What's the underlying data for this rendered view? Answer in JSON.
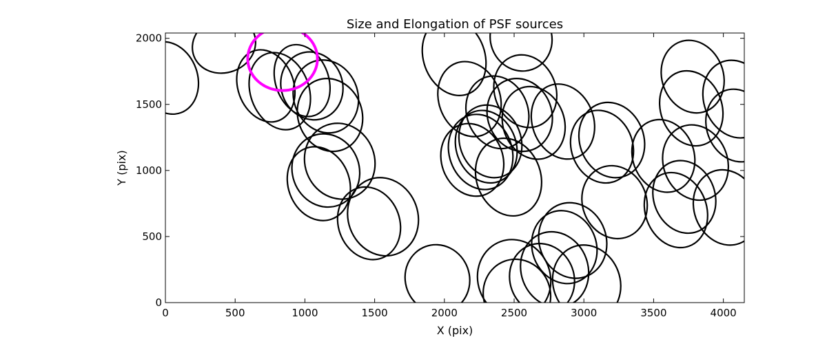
{
  "chart_data": {
    "type": "scatter",
    "title": "Size and Elongation of PSF sources",
    "xlabel": "X (pix)",
    "ylabel": "Y (pix)",
    "xlim": [
      0,
      4150
    ],
    "ylim": [
      0,
      2040
    ],
    "xticks": [
      0,
      500,
      1000,
      1500,
      2000,
      2500,
      3000,
      3500,
      4000
    ],
    "yticks": [
      0,
      500,
      1000,
      1500,
      2000
    ],
    "grid": false,
    "colors": {
      "source": "#000000",
      "highlight": "#ff00ff",
      "axes": "#000000",
      "background": "#ffffff"
    },
    "highlight": {
      "x": 840,
      "y": 1845,
      "width": 500,
      "height": 480,
      "angle": 0
    },
    "ellipses": [
      {
        "x": 20,
        "y": 1700,
        "width": 420,
        "height": 560,
        "angle": -20
      },
      {
        "x": 420,
        "y": 1950,
        "width": 460,
        "height": 420,
        "angle": -20
      },
      {
        "x": 720,
        "y": 1640,
        "width": 400,
        "height": 560,
        "angle": -20
      },
      {
        "x": 820,
        "y": 1600,
        "width": 420,
        "height": 600,
        "angle": -20
      },
      {
        "x": 980,
        "y": 1680,
        "width": 380,
        "height": 560,
        "angle": -20
      },
      {
        "x": 1050,
        "y": 1640,
        "width": 440,
        "height": 520,
        "angle": -20
      },
      {
        "x": 1150,
        "y": 1560,
        "width": 460,
        "height": 560,
        "angle": -20
      },
      {
        "x": 1180,
        "y": 1420,
        "width": 460,
        "height": 560,
        "angle": -20
      },
      {
        "x": 1250,
        "y": 1070,
        "width": 500,
        "height": 580,
        "angle": -20
      },
      {
        "x": 1150,
        "y": 1000,
        "width": 480,
        "height": 560,
        "angle": -20
      },
      {
        "x": 1100,
        "y": 900,
        "width": 440,
        "height": 570,
        "angle": -20
      },
      {
        "x": 1460,
        "y": 600,
        "width": 440,
        "height": 560,
        "angle": -20
      },
      {
        "x": 1560,
        "y": 650,
        "width": 500,
        "height": 600,
        "angle": -20
      },
      {
        "x": 1950,
        "y": 180,
        "width": 460,
        "height": 520,
        "angle": -20
      },
      {
        "x": 2070,
        "y": 1860,
        "width": 440,
        "height": 600,
        "angle": -20
      },
      {
        "x": 2550,
        "y": 2000,
        "width": 440,
        "height": 500,
        "angle": -20
      },
      {
        "x": 2180,
        "y": 1540,
        "width": 440,
        "height": 580,
        "angle": -20
      },
      {
        "x": 2380,
        "y": 1440,
        "width": 440,
        "height": 560,
        "angle": -20
      },
      {
        "x": 2580,
        "y": 1600,
        "width": 440,
        "height": 560,
        "angle": -20
      },
      {
        "x": 2540,
        "y": 1420,
        "width": 460,
        "height": 560,
        "angle": -20
      },
      {
        "x": 2640,
        "y": 1360,
        "width": 440,
        "height": 560,
        "angle": -20
      },
      {
        "x": 2850,
        "y": 1370,
        "width": 440,
        "height": 580,
        "angle": -20
      },
      {
        "x": 2200,
        "y": 1080,
        "width": 440,
        "height": 560,
        "angle": -20
      },
      {
        "x": 2260,
        "y": 1140,
        "width": 450,
        "height": 580,
        "angle": -20
      },
      {
        "x": 2300,
        "y": 1180,
        "width": 430,
        "height": 560,
        "angle": -20
      },
      {
        "x": 2330,
        "y": 1220,
        "width": 440,
        "height": 560,
        "angle": -20
      },
      {
        "x": 2460,
        "y": 950,
        "width": 460,
        "height": 600,
        "angle": -20
      },
      {
        "x": 2500,
        "y": 180,
        "width": 520,
        "height": 600,
        "angle": -20
      },
      {
        "x": 2520,
        "y": 60,
        "width": 480,
        "height": 540,
        "angle": -20
      },
      {
        "x": 2700,
        "y": 180,
        "width": 460,
        "height": 540,
        "angle": -20
      },
      {
        "x": 2790,
        "y": 250,
        "width": 480,
        "height": 580,
        "angle": -20
      },
      {
        "x": 2860,
        "y": 420,
        "width": 460,
        "height": 560,
        "angle": -20
      },
      {
        "x": 2920,
        "y": 470,
        "width": 480,
        "height": 580,
        "angle": -20
      },
      {
        "x": 3020,
        "y": 150,
        "width": 480,
        "height": 580,
        "angle": -20
      },
      {
        "x": 3130,
        "y": 1180,
        "width": 440,
        "height": 560,
        "angle": -20
      },
      {
        "x": 3200,
        "y": 1230,
        "width": 460,
        "height": 580,
        "angle": -20
      },
      {
        "x": 3220,
        "y": 760,
        "width": 460,
        "height": 560,
        "angle": -20
      },
      {
        "x": 3570,
        "y": 1110,
        "width": 440,
        "height": 560,
        "angle": -20
      },
      {
        "x": 3660,
        "y": 700,
        "width": 440,
        "height": 580,
        "angle": -20
      },
      {
        "x": 3720,
        "y": 800,
        "width": 440,
        "height": 560,
        "angle": -20
      },
      {
        "x": 3770,
        "y": 1470,
        "width": 440,
        "height": 580,
        "angle": -20
      },
      {
        "x": 3780,
        "y": 1710,
        "width": 440,
        "height": 560,
        "angle": -20
      },
      {
        "x": 3800,
        "y": 1060,
        "width": 460,
        "height": 580,
        "angle": -20
      },
      {
        "x": 4020,
        "y": 720,
        "width": 460,
        "height": 580,
        "angle": -20
      },
      {
        "x": 4090,
        "y": 1540,
        "width": 460,
        "height": 600,
        "angle": -20
      },
      {
        "x": 4100,
        "y": 1340,
        "width": 440,
        "height": 560,
        "angle": -20
      }
    ]
  }
}
